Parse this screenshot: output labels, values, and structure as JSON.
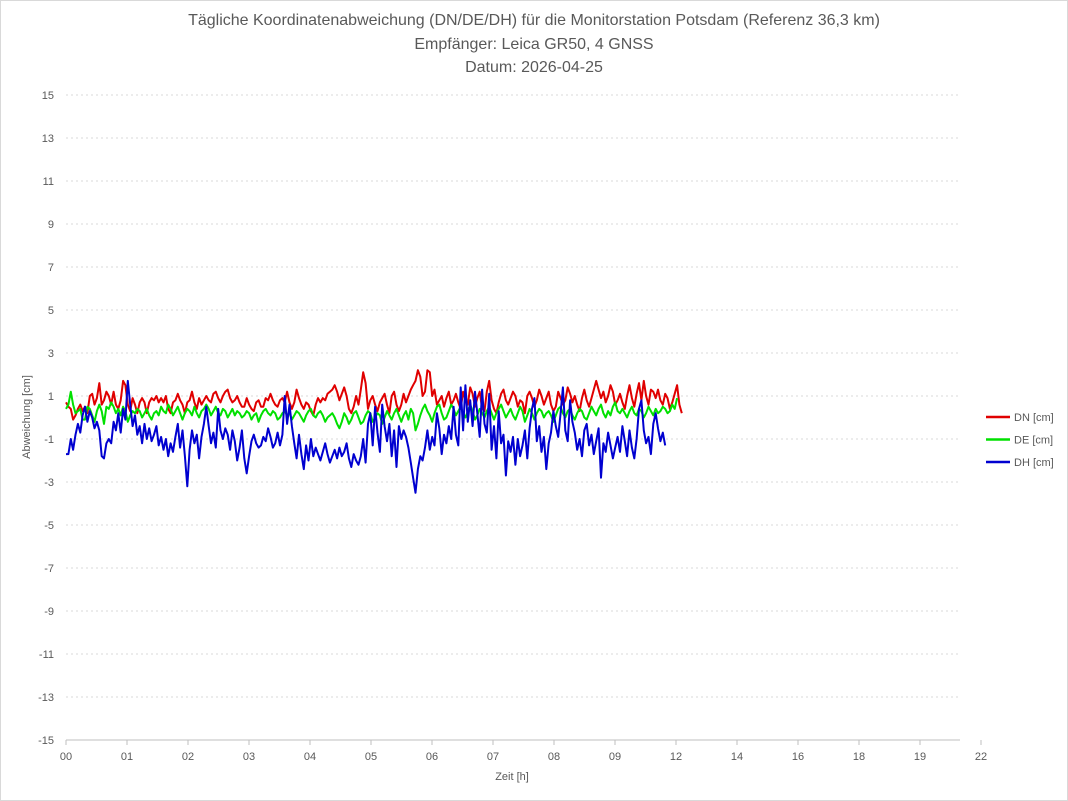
{
  "title": {
    "line1": "Tägliche Koordinatenabweichung (DN/DE/DH) für die Monitorstation Potsdam (Referenz 36,3 km)",
    "line2": "Empfänger: Leica GR50, 4 GNSS",
    "line3": "Datum: 2026-04-25"
  },
  "chart_data": {
    "type": "line",
    "title": "Tägliche Koordinatenabweichung (DN/DE/DH) für die Monitorstation Potsdam (Referenz 36,3 km)",
    "subtitle": [
      "Empfänger: Leica GR50, 4 GNSS",
      "Datum: 2026-04-25"
    ],
    "xlabel": "Zeit [h]",
    "ylabel": "Abweichung [cm]",
    "ylim": [
      -15,
      15
    ],
    "yticks": [
      15,
      13,
      11,
      9,
      7,
      5,
      3,
      1,
      -1,
      -3,
      -5,
      -7,
      -9,
      -11,
      -13,
      -15
    ],
    "xlim": [
      0,
      23.5
    ],
    "xtick_labels": [
      "00",
      "01",
      "02",
      "03",
      "04",
      "05",
      "06",
      "07",
      "08",
      "09",
      "12",
      "14",
      "16",
      "18",
      "19",
      "22"
    ],
    "grid": "horizontal dotted",
    "legend_position": "right",
    "sample_interval_hours": 0.0625,
    "colors": {
      "DN [cm]": "#e00000",
      "DE [cm]": "#00e000",
      "DH [cm]": "#0000d0"
    },
    "series": [
      {
        "name": "DN [cm]",
        "values": [
          0.7,
          0.5,
          0.4,
          -0.1,
          0.1,
          0.4,
          0.6,
          0.3,
          0.5,
          0.2,
          1.0,
          1.1,
          0.6,
          0.9,
          1.6,
          0.6,
          0.8,
          1.2,
          1.0,
          0.6,
          1.2,
          0.6,
          0.4,
          0.8,
          1.7,
          1.5,
          0.6,
          0.3,
          0.9,
          0.6,
          0.2,
          0.7,
          0.9,
          0.7,
          0.2,
          0.7,
          0.9,
          0.8,
          1.0,
          0.7,
          0.9,
          0.7,
          1.0,
          0.4,
          0.2,
          0.7,
          0.8,
          1.1,
          0.8,
          0.6,
          0.2,
          0.7,
          0.8,
          1.2,
          0.7,
          0.4,
          0.9,
          0.6,
          0.8,
          1.0,
          0.8,
          0.7,
          1.1,
          1.2,
          0.9,
          0.7,
          1.0,
          1.2,
          1.3,
          0.9,
          0.7,
          0.8,
          1.0,
          0.7,
          0.5,
          0.5,
          0.9,
          0.6,
          0.4,
          0.3,
          0.7,
          0.8,
          0.5,
          0.5,
          0.9,
          0.8,
          1.1,
          0.8,
          0.6,
          0.5,
          0.8,
          0.9,
          0.7,
          1.2,
          0.7,
          0.4,
          0.7,
          1.3,
          0.9,
          0.6,
          0.4,
          0.7,
          0.6,
          0.3,
          0.1,
          0.6,
          0.9,
          0.7,
          0.9,
          0.8,
          1.1,
          1.2,
          1.3,
          1.5,
          1.2,
          0.8,
          1.1,
          1.4,
          1.0,
          0.4,
          0.2,
          0.5,
          1.0,
          0.6,
          1.3,
          2.1,
          1.6,
          0.4,
          0.8,
          1.0,
          0.6,
          0.3,
          0.7,
          0.9,
          1.1,
          0.6,
          0.2,
          1.0,
          1.2,
          0.6,
          0.3,
          0.6,
          1.1,
          0.7,
          1.0,
          1.3,
          1.5,
          1.7,
          2.2,
          1.9,
          1.0,
          1.2,
          2.2,
          2.1,
          1.0,
          1.3,
          0.6,
          0.8,
          1.0,
          0.5,
          0.9,
          1.2,
          0.6,
          0.8,
          1.1,
          0.7,
          0.4,
          1.2,
          0.8,
          0.6,
          1.4,
          1.1,
          0.5,
          0.9,
          1.2,
          0.4,
          0.3,
          1.2,
          1.7,
          0.8,
          0.4,
          0.2,
          0.7,
          1.1,
          1.3,
          0.8,
          0.6,
          0.9,
          1.2,
          1.0,
          0.5,
          0.8,
          0.7,
          0.2,
          1.0,
          1.2,
          0.9,
          0.5,
          0.8,
          1.3,
          1.0,
          0.6,
          0.9,
          1.2,
          0.6,
          0.3,
          0.5,
          1.2,
          0.9,
          0.6,
          0.8,
          1.4,
          1.1,
          0.7,
          1.0,
          0.6,
          0.3,
          0.9,
          1.3,
          0.8,
          0.5,
          0.9,
          1.3,
          1.7,
          1.3,
          0.9,
          1.2,
          0.7,
          1.0,
          1.5,
          1.2,
          0.6,
          0.8,
          1.1,
          0.7,
          0.4,
          1.0,
          1.5,
          0.9,
          0.5,
          1.1,
          1.6,
          0.8,
          1.7,
          1.0,
          0.6,
          1.3,
          1.2,
          0.9,
          1.3,
          0.8,
          0.6,
          1.1,
          0.9,
          0.4,
          0.7,
          1.1,
          1.5,
          0.6,
          0.2
        ]
      },
      {
        "name": "DE [cm]",
        "values": [
          0.4,
          0.6,
          1.2,
          0.6,
          0.2,
          0.3,
          0.4,
          -0.1,
          -0.1,
          0.5,
          0.4,
          0.1,
          -0.2,
          0.3,
          0.6,
          0.3,
          -0.3,
          0.5,
          0.4,
          0.7,
          0.5,
          0.2,
          0.4,
          0.1,
          0.5,
          0.3,
          -0.2,
          0.1,
          0.3,
          0.2,
          0.4,
          0.3,
          0.0,
          0.2,
          0.4,
          0.1,
          -0.1,
          0.2,
          0.3,
          0.1,
          0.5,
          0.3,
          0.2,
          0.6,
          0.4,
          0.1,
          0.3,
          0.5,
          0.2,
          -0.1,
          0.2,
          0.4,
          0.3,
          0.1,
          0.5,
          0.2,
          0.0,
          0.3,
          0.4,
          0.6,
          0.4,
          0.1,
          0.3,
          0.5,
          0.2,
          0.1,
          0.4,
          0.3,
          0.0,
          0.2,
          0.4,
          0.1,
          0.3,
          0.2,
          0.0,
          0.1,
          0.3,
          0.2,
          -0.1,
          0.1,
          0.2,
          -0.2,
          0.1,
          0.3,
          0.4,
          0.2,
          0.1,
          0.3,
          0.2,
          -0.1,
          0.0,
          0.2,
          0.3,
          0.1,
          0.2,
          -0.1,
          0.1,
          0.3,
          0.2,
          0.0,
          -0.2,
          0.1,
          0.3,
          0.4,
          0.1,
          0.0,
          0.2,
          0.3,
          0.1,
          -0.2,
          0.0,
          0.1,
          0.2,
          0.0,
          -0.3,
          -0.5,
          -0.2,
          0.2,
          0.0,
          -0.3,
          -0.1,
          0.2,
          0.3,
          0.0,
          -0.3,
          -0.2,
          0.1,
          0.3,
          0.2,
          -0.2,
          0.0,
          0.2,
          0.1,
          -0.3,
          0.0,
          0.3,
          0.1,
          -0.1,
          0.2,
          0.4,
          0.1,
          -0.2,
          0.1,
          0.3,
          -0.1,
          0.4,
          0.2,
          -0.6,
          -0.3,
          0.1,
          0.4,
          0.6,
          0.3,
          0.1,
          -0.2,
          0.2,
          0.5,
          0.6,
          0.2,
          -0.1,
          0.0,
          0.3,
          0.6,
          0.4,
          0.1,
          0.3,
          0.5,
          0.2,
          0.0,
          0.3,
          0.6,
          0.3,
          -0.1,
          0.1,
          0.4,
          0.2,
          0.0,
          0.3,
          0.5,
          0.2,
          -0.1,
          0.2,
          0.4,
          0.6,
          0.3,
          0.0,
          0.2,
          0.4,
          0.1,
          -0.1,
          0.2,
          0.5,
          0.3,
          -0.2,
          0.1,
          0.4,
          0.2,
          -0.1,
          0.2,
          0.4,
          0.3,
          0.0,
          0.2,
          0.3,
          0.1,
          -0.2,
          0.1,
          0.4,
          0.5,
          0.2,
          0.0,
          0.3,
          0.4,
          0.1,
          -0.1,
          0.2,
          0.4,
          0.3,
          0.0,
          -0.1,
          0.2,
          0.5,
          0.3,
          0.1,
          0.4,
          0.6,
          0.2,
          0.0,
          0.3,
          0.1,
          0.5,
          0.7,
          0.3,
          0.2,
          0.4,
          0.2,
          0.0,
          0.3,
          0.5,
          0.2,
          0.1,
          0.4,
          0.3,
          0.0,
          0.2,
          0.5,
          0.3,
          0.1,
          0.4,
          0.2,
          0.3,
          0.5,
          0.4,
          0.2,
          0.3,
          0.6,
          0.4,
          0.9
        ]
      },
      {
        "name": "DH [cm]",
        "values": [
          -1.7,
          -1.7,
          -1.0,
          -1.5,
          -0.8,
          -0.3,
          -0.7,
          0.1,
          0.5,
          -0.2,
          0.3,
          0.0,
          -0.5,
          -0.2,
          -0.6,
          -1.8,
          -1.9,
          -1.2,
          -1.0,
          -1.2,
          -0.2,
          -0.6,
          0.2,
          -0.7,
          0.4,
          -0.1,
          1.7,
          0.6,
          -0.4,
          0.1,
          -0.8,
          -0.4,
          -1.2,
          -0.3,
          -1.0,
          -0.5,
          -1.1,
          -0.8,
          -0.4,
          -1.3,
          -0.9,
          -1.5,
          -1.0,
          -1.8,
          -1.2,
          -1.6,
          -0.9,
          -0.3,
          -1.4,
          -0.6,
          -1.8,
          -3.2,
          -1.5,
          -0.6,
          -1.2,
          -0.8,
          -1.9,
          -0.9,
          -0.3,
          0.5,
          -0.4,
          -1.2,
          -0.7,
          -1.4,
          0.4,
          -0.6,
          -1.0,
          -0.5,
          -0.8,
          -1.5,
          -0.6,
          -1.1,
          -2.0,
          -1.4,
          -0.6,
          -1.9,
          -2.6,
          -1.8,
          -1.1,
          -0.8,
          -1.2,
          -1.4,
          -1.3,
          -0.9,
          -1.1,
          -0.5,
          -0.9,
          -1.4,
          -1.2,
          -0.7,
          -1.3,
          -0.8,
          1.0,
          -0.3,
          0.6,
          -0.4,
          -1.2,
          -1.9,
          -0.8,
          -1.7,
          -2.4,
          -1.3,
          -2.0,
          -1.0,
          -1.8,
          -1.4,
          -1.7,
          -2.0,
          -1.6,
          -1.2,
          -1.7,
          -2.1,
          -1.8,
          -1.5,
          -1.9,
          -1.4,
          -1.8,
          -1.6,
          -1.2,
          -1.9,
          -2.3,
          -1.7,
          -2.0,
          -2.2,
          -1.8,
          -1.0,
          -2.1,
          -0.3,
          0.2,
          -1.3,
          0.5,
          -0.7,
          -1.6,
          0.6,
          -0.4,
          -1.1,
          -0.3,
          -1.8,
          -0.6,
          -2.3,
          -0.4,
          -1.0,
          -0.6,
          -0.9,
          -1.4,
          -2.1,
          -2.8,
          -3.5,
          -2.4,
          -1.8,
          -2.0,
          -1.4,
          -0.6,
          -1.5,
          -0.9,
          -1.3,
          0.2,
          -0.5,
          -1.7,
          -0.8,
          -1.2,
          -0.4,
          -1.0,
          0.5,
          -0.8,
          -1.3,
          1.4,
          -0.6,
          1.5,
          -0.2,
          0.8,
          -0.4,
          1.2,
          0.2,
          -0.9,
          1.3,
          -0.3,
          -0.7,
          1.1,
          -1.5,
          -0.4,
          -1.9,
          0.3,
          -1.2,
          -0.8,
          -2.7,
          -1.1,
          -1.6,
          -0.9,
          -2.2,
          -1.0,
          -1.8,
          -1.3,
          -0.6,
          -1.9,
          -0.5,
          0.4,
          0.9,
          -1.1,
          -0.4,
          -1.6,
          -0.9,
          -2.4,
          -1.2,
          -0.7,
          0.3,
          -0.4,
          -0.9,
          0.2,
          1.4,
          -0.6,
          -1.1,
          0.8,
          -0.2,
          -0.7,
          -1.5,
          -1.0,
          -1.8,
          -0.6,
          -0.3,
          -1.3,
          -0.8,
          -1.7,
          -1.1,
          -0.5,
          -2.8,
          -1.2,
          -1.6,
          -0.7,
          -1.3,
          -1.9,
          -1.4,
          -0.9,
          -1.6,
          -0.4,
          -1.1,
          -1.8,
          -0.6,
          -1.4,
          -1.9,
          -1.0,
          0.4,
          0.8,
          -0.6,
          -1.2,
          -0.9,
          -1.7,
          -0.3,
          0.2,
          -0.5,
          -1.1,
          -0.7,
          -1.3
        ]
      }
    ]
  }
}
